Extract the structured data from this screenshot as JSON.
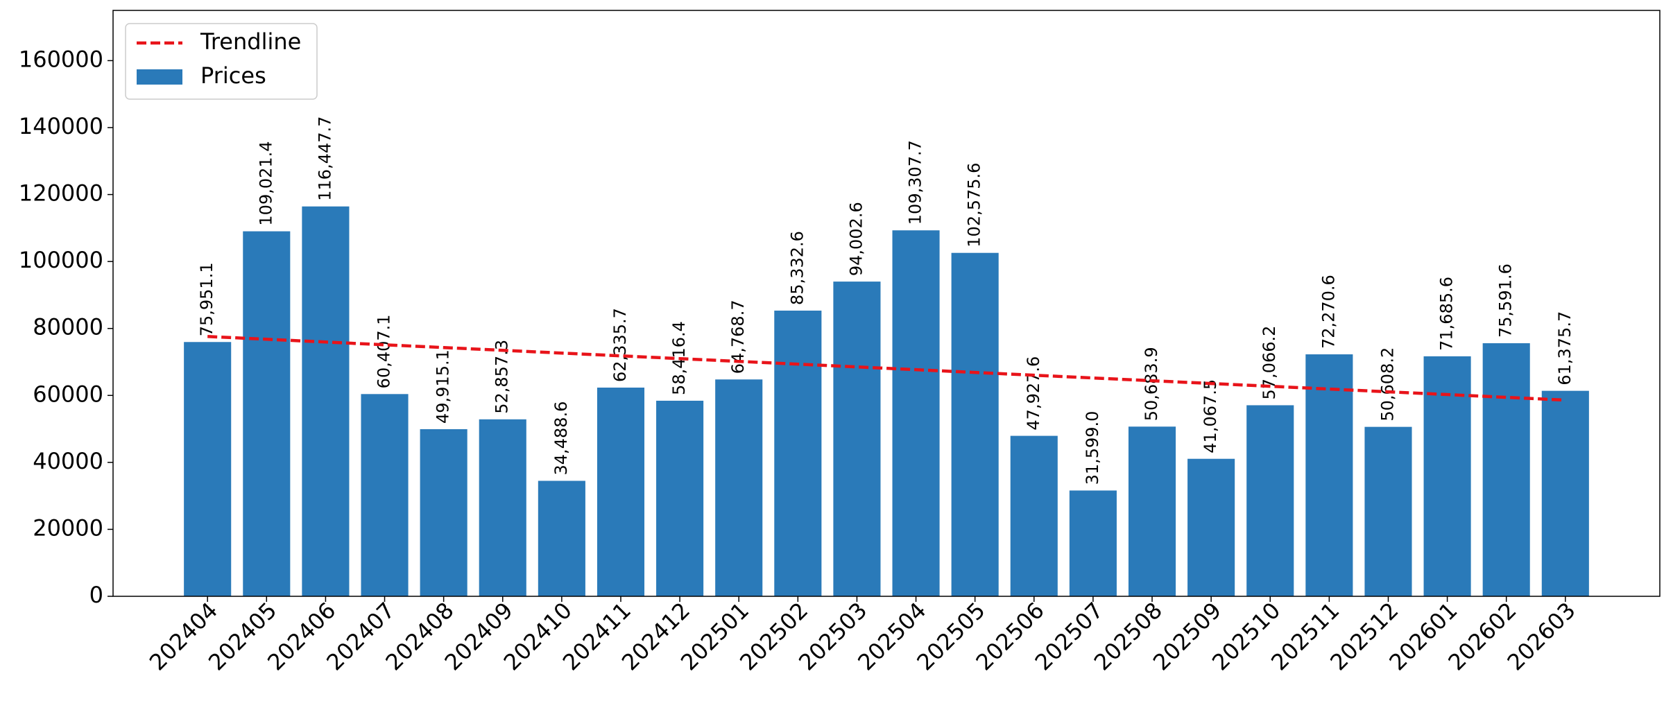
{
  "chart_data": {
    "type": "bar",
    "categories": [
      "202404",
      "202405",
      "202406",
      "202407",
      "202408",
      "202409",
      "202410",
      "202411",
      "202412",
      "202501",
      "202502",
      "202503",
      "202504",
      "202505",
      "202506",
      "202507",
      "202508",
      "202509",
      "202510",
      "202511",
      "202512",
      "202601",
      "202602",
      "202603"
    ],
    "series": [
      {
        "name": "Trendline",
        "type": "line",
        "color": "#e8141a",
        "values": [
          77600,
          76774,
          75948,
          75122,
          74296,
          73470,
          72644,
          71818,
          70992,
          70166,
          69340,
          68514,
          67688,
          66862,
          66036,
          65210,
          64384,
          63558,
          62732,
          61906,
          61080,
          60254,
          59428,
          58602
        ]
      },
      {
        "name": "Prices",
        "type": "bar",
        "color": "#2a7ab9",
        "values": [
          75951.1,
          109021.4,
          116447.7,
          60407.1,
          49915.1,
          52857.3,
          34488.6,
          62335.7,
          58416.4,
          64768.7,
          85332.6,
          94002.6,
          109307.7,
          102575.6,
          47927.6,
          31599.0,
          50683.9,
          41067.5,
          57066.2,
          72270.6,
          50608.2,
          71685.6,
          75591.6,
          61375.7
        ],
        "value_labels": [
          "75,951.1",
          "109,021.4",
          "116,447.7",
          "60,407.1",
          "49,915.1",
          "52,857.3",
          "34,488.6",
          "62,335.7",
          "58,416.4",
          "64,768.7",
          "85,332.6",
          "94,002.6",
          "109,307.7",
          "102,575.6",
          "47,927.6",
          "31,599.0",
          "50,683.9",
          "41,067.5",
          "57,066.2",
          "72,270.6",
          "50,608.2",
          "71,685.6",
          "75,591.6",
          "61,375.7"
        ]
      }
    ],
    "ylim": [
      0,
      175000
    ],
    "yticks": [
      0,
      20000,
      40000,
      60000,
      80000,
      100000,
      120000,
      140000,
      160000
    ],
    "legend": "upper left"
  }
}
